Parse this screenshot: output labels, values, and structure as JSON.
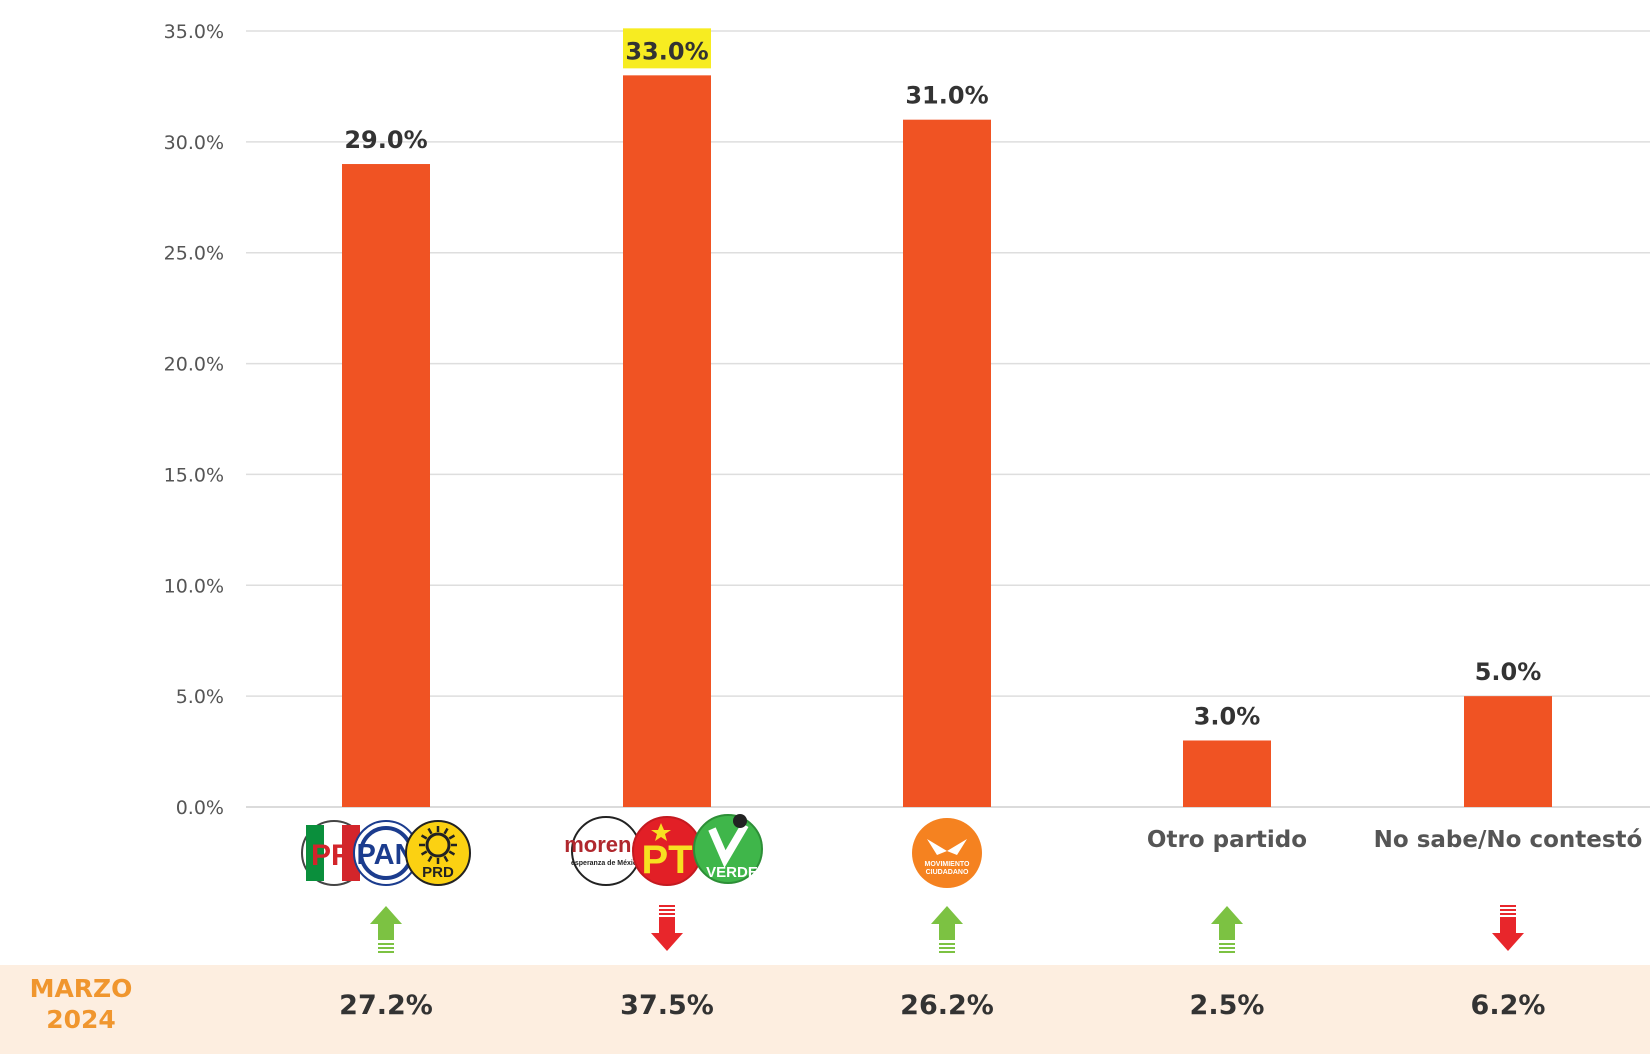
{
  "chart_data": {
    "type": "bar",
    "title": "",
    "xlabel": "",
    "ylabel": "",
    "ylim": [
      0,
      35
    ],
    "yticks": [
      "0.0%",
      "5.0%",
      "10.0%",
      "15.0%",
      "20.0%",
      "25.0%",
      "30.0%",
      "35.0%"
    ],
    "grid": true,
    "bar_color": "#f05323",
    "highlight_color": "#f7ec21",
    "up_color": "#7cc242",
    "down_color": "#e8262b",
    "categories": [
      {
        "name": "PRI-PAN-PRD",
        "display": "logos",
        "logos": [
          "PRI",
          "PAN",
          "PRD"
        ],
        "value": 29.0,
        "label": "29.0%",
        "highlight": false,
        "trend": "up",
        "previous": "27.2%"
      },
      {
        "name": "Morena-PT-Verde",
        "display": "logos",
        "logos": [
          "morena",
          "esperanza de México",
          "PT",
          "VERDE"
        ],
        "value": 33.0,
        "label": "33.0%",
        "highlight": true,
        "trend": "down",
        "previous": "37.5%"
      },
      {
        "name": "Movimiento Ciudadano",
        "display": "logos",
        "logos": [
          "MOVIMIENTO",
          "CIUDADANO"
        ],
        "value": 31.0,
        "label": "31.0%",
        "highlight": false,
        "trend": "up",
        "previous": "26.2%"
      },
      {
        "name": "Otro partido",
        "display": "text",
        "value": 3.0,
        "label": "3.0%",
        "highlight": false,
        "trend": "up",
        "previous": "2.5%"
      },
      {
        "name": "No sabe/No contestó",
        "display": "text",
        "value": 5.0,
        "label": "5.0%",
        "highlight": false,
        "trend": "down",
        "previous": "6.2%"
      }
    ],
    "comparison": {
      "label_line1": "MARZO",
      "label_line2": "2024",
      "band_color": "#fdeee0"
    }
  }
}
